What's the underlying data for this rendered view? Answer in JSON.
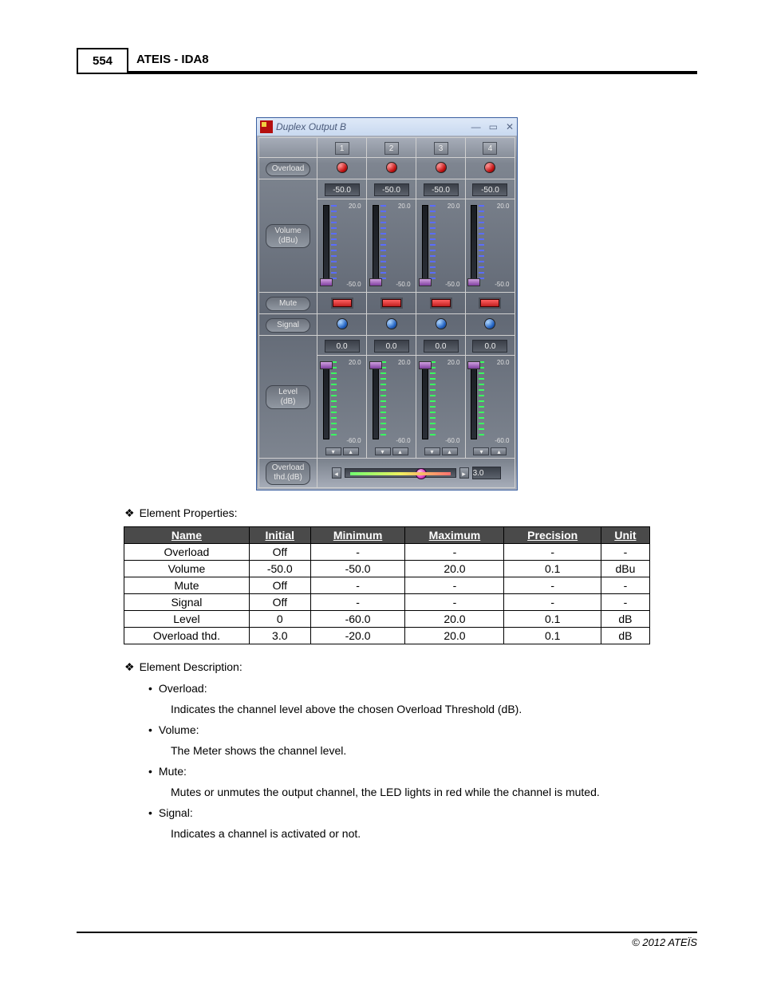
{
  "page_number": "554",
  "header_title": "ATEIS - IDA8",
  "footer": "© 2012 ATEÏS",
  "app": {
    "title": "Duplex Output B",
    "channels": [
      "1",
      "2",
      "3",
      "4"
    ],
    "rows": {
      "overload_label": "Overload",
      "volume_label": "Volume\n(dBu)",
      "mute_label": "Mute",
      "signal_label": "Signal",
      "level_label": "Level\n(dB)",
      "thd_label": "Overload\nthd.(dB)"
    },
    "volume_value": "-50.0",
    "volume_scale_top": "20.0",
    "volume_scale_bot": "-50.0",
    "level_value": "0.0",
    "level_scale_top": "20.0",
    "level_scale_bot": "-60.0",
    "thd_value": "3.0"
  },
  "section_props_title": "Element Properties:",
  "props_table": {
    "headers": [
      "Name",
      "Initial",
      "Minimum",
      "Maximum",
      "Precision",
      "Unit"
    ],
    "rows": [
      [
        "Overload",
        "Off",
        "-",
        "-",
        "-",
        "-"
      ],
      [
        "Volume",
        "-50.0",
        "-50.0",
        "20.0",
        "0.1",
        "dBu"
      ],
      [
        "Mute",
        "Off",
        "-",
        "-",
        "-",
        "-"
      ],
      [
        "Signal",
        "Off",
        "-",
        "-",
        "-",
        "-"
      ],
      [
        "Level",
        "0",
        "-60.0",
        "20.0",
        "0.1",
        "dB"
      ],
      [
        "Overload thd.",
        "3.0",
        "-20.0",
        "20.0",
        "0.1",
        "dB"
      ]
    ]
  },
  "section_desc_title": "Element Description:",
  "desc": [
    {
      "name": "Overload:",
      "text": "Indicates the channel level above the chosen Overload Threshold (dB)."
    },
    {
      "name": "Volume:",
      "text": "The Meter shows the channel level."
    },
    {
      "name": "Mute:",
      "text": "Mutes or unmutes the output channel, the LED lights in red while the channel is muted."
    },
    {
      "name": "Signal:",
      "text": "Indicates a channel is activated or not."
    }
  ]
}
